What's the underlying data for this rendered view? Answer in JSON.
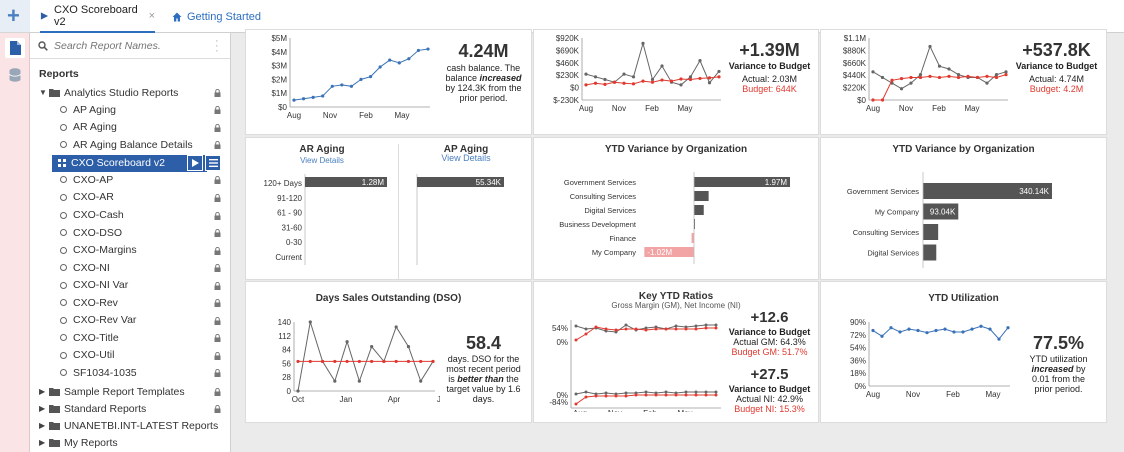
{
  "tabs": [
    {
      "label": "CXO Scoreboard v2",
      "close": "×"
    },
    {
      "label": "Getting Started"
    }
  ],
  "search": {
    "placeholder": "Search Report Names."
  },
  "reports_heading": "Reports",
  "tree": {
    "root": "Analytics Studio Reports",
    "items": [
      "AP Aging",
      "AR Aging",
      "AR Aging Balance Details",
      "CXO Scoreboard v2",
      "CXO-AP",
      "CXO-AR",
      "CXO-Cash",
      "CXO-DSO",
      "CXO-Margins",
      "CXO-NI",
      "CXO-NI Var",
      "CXO-Rev",
      "CXO-Rev Var",
      "CXO-Title",
      "CXO-Util",
      "SF1034-1035"
    ],
    "folders": [
      "Sample Report Templates",
      "Standard Reports",
      "UNANETBI.INT-LATEST Reports",
      "My Reports"
    ]
  },
  "cash": {
    "big": "4.24M",
    "line1": "cash balance. The",
    "line2a": "balance ",
    "line2b": "increased",
    "line3": "by 124.3K from the",
    "line4": "prior period.",
    "chart_data": {
      "type": "line",
      "ylabels": [
        "$5M",
        "$4M",
        "$3M",
        "$2M",
        "$1M",
        "$0"
      ],
      "xlabels": [
        "Aug",
        "Nov",
        "Feb",
        "May"
      ],
      "series": [
        {
          "values": [
            0.5,
            0.6,
            0.7,
            0.8,
            1.5,
            1.6,
            1.5,
            2.0,
            2.2,
            2.9,
            3.4,
            3.2,
            3.5,
            4.1,
            4.2
          ]
        }
      ],
      "ylim": [
        0,
        5
      ]
    }
  },
  "rev": {
    "big": "+1.39M",
    "title": "Variance to Budget",
    "actual": "Actual: 2.03M",
    "budget": "Budget: 644K",
    "chart_data": {
      "type": "line",
      "ylabels": [
        "$920K",
        "$690K",
        "$460K",
        "$230K",
        "$0",
        "$-230K"
      ],
      "xlabels": [
        "Aug",
        "Nov",
        "Feb",
        "May"
      ],
      "ylim": [
        -230,
        920
      ],
      "series": [
        {
          "color": "#666666",
          "values": [
            250,
            200,
            150,
            100,
            250,
            200,
            820,
            150,
            400,
            100,
            50,
            200,
            500,
            90,
            300
          ]
        },
        {
          "color": "#e0392f",
          "values": [
            50,
            80,
            60,
            100,
            80,
            70,
            120,
            100,
            140,
            120,
            160,
            150,
            170,
            180,
            200
          ]
        }
      ]
    }
  },
  "ni": {
    "big": "+537.8K",
    "title": "Variance to Budget",
    "actual": "Actual: 4.74M",
    "budget": "Budget: 4.2M",
    "chart_data": {
      "type": "line",
      "ylabels": [
        "$1.1M",
        "$880K",
        "$660K",
        "$440K",
        "$220K",
        "$0"
      ],
      "xlabels": [
        "Aug",
        "Nov",
        "Feb",
        "May"
      ],
      "ylim": [
        0,
        1.1
      ],
      "series": [
        {
          "color": "#666666",
          "values": [
            0.5,
            0.4,
            0.3,
            0.2,
            0.3,
            0.45,
            0.95,
            0.6,
            0.55,
            0.45,
            0.4,
            0.4,
            0.3,
            0.45,
            0.5
          ]
        },
        {
          "color": "#e0392f",
          "values": [
            0,
            0,
            0.35,
            0.38,
            0.4,
            0.4,
            0.42,
            0.4,
            0.42,
            0.4,
            0.42,
            0.4,
            0.42,
            0.4,
            0.45
          ]
        }
      ]
    }
  },
  "ar_aging": {
    "title": "AR Aging",
    "link": "View Details",
    "chart_data": {
      "type": "bar",
      "categories": [
        "120+ Days",
        "91-120",
        "61 - 90",
        "31-60",
        "0-30",
        "Current"
      ],
      "values": [
        1.28,
        0,
        0,
        0,
        0,
        0
      ],
      "label": "1.28M"
    }
  },
  "ap_aging": {
    "title": "AP Aging",
    "link": "View Details",
    "chart_data": {
      "type": "bar",
      "values": [
        55.34,
        0,
        0,
        0,
        0,
        0
      ],
      "label": "55.34K"
    }
  },
  "ytd_org1": {
    "title": "YTD Variance by Organization",
    "chart_data": {
      "type": "bar",
      "categories": [
        "Government Services",
        "Consulting Services",
        "Digital Services",
        "Business Development",
        "Finance",
        "My Company"
      ],
      "values": [
        1.97,
        0.3,
        0.2,
        0.02,
        -0.05,
        -1.02
      ],
      "labels": [
        "1.97M",
        "",
        "",
        "",
        "",
        "-1.02M"
      ]
    }
  },
  "ytd_org2": {
    "title": "YTD Variance by Organization",
    "chart_data": {
      "type": "bar",
      "categories": [
        "Government Services",
        "My Company",
        "Consulting Services",
        "Digital Services"
      ],
      "values": [
        340.14,
        93.04,
        40,
        35
      ],
      "labels": [
        "340.14K",
        "93.04K",
        "",
        ""
      ]
    }
  },
  "dso": {
    "title": "Days Sales Outstanding (DSO)",
    "big": "58.4",
    "n1": "days. DSO for the",
    "n2": "most recent period",
    "n3a": "is ",
    "n3b": "better than",
    "n3c": " the",
    "n4": "target value by 1.6",
    "n5": "days.",
    "chart_data": {
      "type": "line",
      "ylabels": [
        "140",
        "112",
        "84",
        "56",
        "28",
        "0"
      ],
      "xlabels": [
        "Oct",
        "Jan",
        "Apr",
        "Jul"
      ],
      "ylim": [
        0,
        140
      ],
      "series": [
        {
          "color": "#666666",
          "values": [
            0,
            140,
            60,
            20,
            100,
            20,
            90,
            60,
            130,
            90,
            20,
            60
          ]
        },
        {
          "color": "#e0392f",
          "values": [
            60,
            60,
            60,
            60,
            60,
            60,
            60,
            60,
            60,
            60,
            60,
            60
          ]
        }
      ]
    }
  },
  "ratios": {
    "title": "Key YTD Ratios",
    "subtitle": "Gross Margin (GM), Net Income (NI)",
    "gm_big": "+12.6",
    "gm_title": "Variance to Budget",
    "gm_actual": "Actual GM: 64.3%",
    "gm_budget": "Budget GM: 51.7%",
    "ni_big": "+27.5",
    "ni_title": "Variance to Budget",
    "ni_actual": "Actual NI: 42.9%",
    "ni_budget": "Budget NI: 15.3%",
    "chart_data": {
      "type": "line",
      "gm_ylabels": [
        "54%",
        "0%"
      ],
      "ni_ylabels": [
        "0%",
        "-84%"
      ],
      "xlabels": [
        "Aug",
        "Nov",
        "Feb",
        "May"
      ]
    }
  },
  "util": {
    "title": "YTD Utilization",
    "big": "77.5%",
    "n1": "YTD utilization",
    "n2a": "increased",
    "n2b": " by",
    "n3": "0.01 from the",
    "n4": "prior period.",
    "chart_data": {
      "type": "line",
      "ylabels": [
        "90%",
        "72%",
        "54%",
        "36%",
        "18%",
        "0%"
      ],
      "xlabels": [
        "Aug",
        "Nov",
        "Feb",
        "May"
      ],
      "ylim": [
        0,
        90
      ],
      "series": [
        {
          "values": [
            78,
            70,
            82,
            76,
            80,
            78,
            75,
            78,
            80,
            76,
            76,
            80,
            84,
            80,
            66,
            82
          ]
        }
      ]
    }
  }
}
